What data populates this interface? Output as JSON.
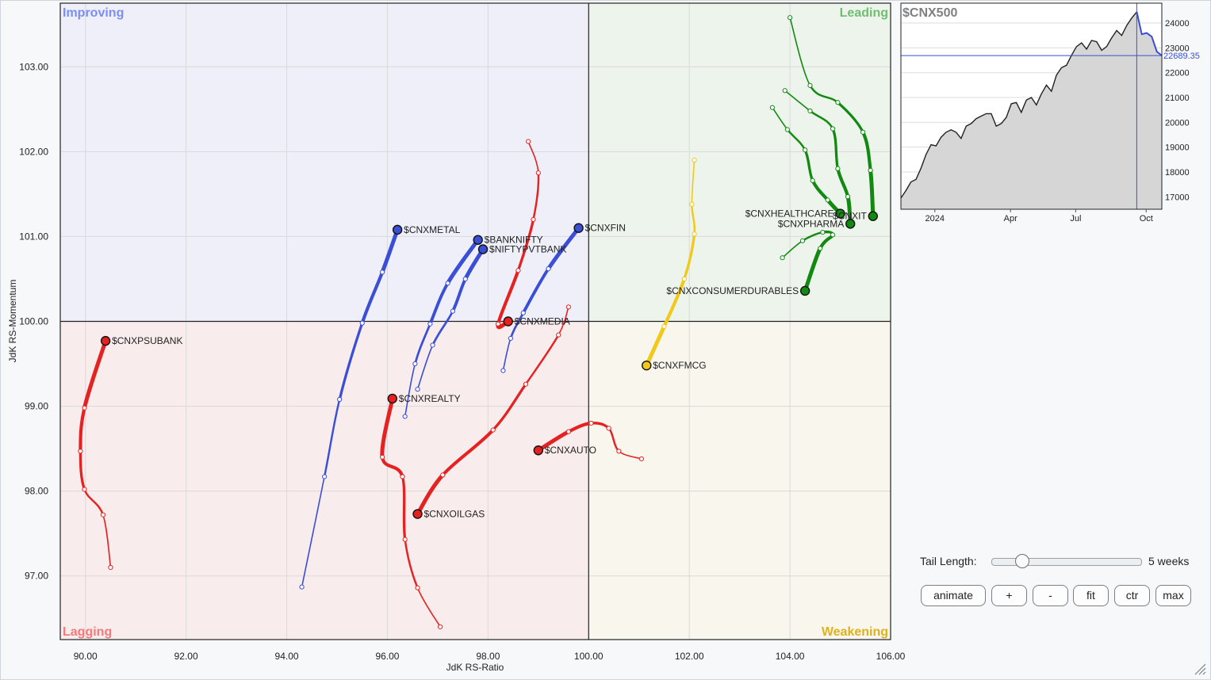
{
  "chart_data": {
    "type": "scatter",
    "xlabel": "JdK RS-Ratio",
    "ylabel": "JdK RS-Momentum",
    "xlim": [
      89.5,
      106.0
    ],
    "ylim": [
      96.25,
      103.75
    ],
    "xticks": [
      "90.00",
      "92.00",
      "94.00",
      "96.00",
      "98.00",
      "100.00",
      "102.00",
      "104.00",
      "106.00"
    ],
    "yticks": [
      "97.00",
      "98.00",
      "99.00",
      "100.00",
      "101.00",
      "102.00",
      "103.00"
    ],
    "grid": true,
    "quadrants": {
      "improving": "Improving",
      "leading": "Leading",
      "lagging": "Lagging",
      "weakening": "Weakening"
    },
    "series": [
      {
        "name": "$CNXMETAL",
        "color": "#3a4fd6",
        "points": [
          [
            94.3,
            96.87
          ],
          [
            94.75,
            98.17
          ],
          [
            95.05,
            99.08
          ],
          [
            95.5,
            99.98
          ],
          [
            95.9,
            100.58
          ],
          [
            96.2,
            101.08
          ]
        ]
      },
      {
        "name": "$BANKNIFTY",
        "color": "#3a4fd6",
        "points": [
          [
            96.35,
            98.88
          ],
          [
            96.55,
            99.5
          ],
          [
            96.85,
            99.97
          ],
          [
            97.2,
            100.45
          ],
          [
            97.8,
            100.96
          ]
        ]
      },
      {
        "name": "$NIFTYPVTBANK",
        "color": "#3a4fd6",
        "points": [
          [
            96.6,
            99.2
          ],
          [
            96.9,
            99.72
          ],
          [
            97.3,
            100.12
          ],
          [
            97.55,
            100.5
          ],
          [
            97.9,
            100.85
          ]
        ]
      },
      {
        "name": "$CNXFIN",
        "color": "#3a4fd6",
        "points": [
          [
            98.3,
            99.42
          ],
          [
            98.45,
            99.8
          ],
          [
            98.7,
            100.1
          ],
          [
            99.2,
            100.62
          ],
          [
            99.8,
            101.1
          ]
        ]
      },
      {
        "name": "$CNXMEDIA",
        "color": "#e52222",
        "points": [
          [
            98.8,
            102.12
          ],
          [
            99.0,
            101.75
          ],
          [
            98.9,
            101.2
          ],
          [
            98.6,
            100.6
          ],
          [
            98.2,
            99.97
          ],
          [
            98.4,
            100.0
          ]
        ]
      },
      {
        "name": "$CNXPSUBANK",
        "color": "#e52222",
        "points": [
          [
            90.5,
            97.1
          ],
          [
            90.35,
            97.72
          ],
          [
            89.98,
            98.02
          ],
          [
            89.9,
            98.47
          ],
          [
            89.98,
            98.98
          ],
          [
            90.4,
            99.77
          ]
        ]
      },
      {
        "name": "$CNXREALTY",
        "color": "#e52222",
        "points": [
          [
            97.05,
            96.4
          ],
          [
            96.6,
            96.86
          ],
          [
            96.35,
            97.43
          ],
          [
            96.3,
            98.17
          ],
          [
            95.9,
            98.4
          ],
          [
            96.1,
            99.09
          ]
        ]
      },
      {
        "name": "$CNXOILGAS",
        "color": "#e52222",
        "points": [
          [
            99.6,
            100.17
          ],
          [
            99.4,
            99.84
          ],
          [
            98.75,
            99.26
          ],
          [
            98.1,
            98.72
          ],
          [
            97.1,
            98.19
          ],
          [
            96.6,
            97.73
          ]
        ]
      },
      {
        "name": "$CNXAUTO",
        "color": "#e52222",
        "points": [
          [
            101.05,
            98.38
          ],
          [
            100.6,
            98.47
          ],
          [
            100.4,
            98.74
          ],
          [
            100.05,
            98.8
          ],
          [
            99.6,
            98.7
          ],
          [
            99.0,
            98.48
          ]
        ]
      },
      {
        "name": "$CNXFMCG",
        "color": "#f2c81a",
        "points": [
          [
            102.1,
            101.9
          ],
          [
            102.05,
            101.38
          ],
          [
            102.1,
            101.03
          ],
          [
            101.9,
            100.5
          ],
          [
            101.5,
            99.94
          ],
          [
            101.15,
            99.48
          ]
        ]
      },
      {
        "name": "$CNXHEALTHCARE",
        "color": "#128a12",
        "points": [
          [
            103.65,
            102.52
          ],
          [
            103.95,
            102.26
          ],
          [
            104.3,
            102.02
          ],
          [
            104.45,
            101.66
          ],
          [
            104.75,
            101.43
          ],
          [
            105.0,
            101.27
          ]
        ]
      },
      {
        "name": "$CNXIT",
        "color": "#128a12",
        "points": [
          [
            104.0,
            103.58
          ],
          [
            104.4,
            102.78
          ],
          [
            104.95,
            102.58
          ],
          [
            105.45,
            102.23
          ],
          [
            105.6,
            101.78
          ],
          [
            105.65,
            101.24
          ]
        ]
      },
      {
        "name": "$CNXPHARMA",
        "color": "#128a12",
        "points": [
          [
            103.9,
            102.72
          ],
          [
            104.4,
            102.48
          ],
          [
            104.85,
            102.27
          ],
          [
            104.95,
            101.8
          ],
          [
            105.15,
            101.47
          ],
          [
            105.2,
            101.15
          ]
        ]
      },
      {
        "name": "$CNXCONSUMERDURABLES",
        "color": "#128a12",
        "points": [
          [
            103.85,
            100.75
          ],
          [
            104.25,
            100.95
          ],
          [
            104.65,
            101.05
          ],
          [
            104.85,
            101.02
          ],
          [
            104.6,
            100.86
          ],
          [
            104.3,
            100.36
          ]
        ]
      }
    ],
    "benchmark": {
      "title": "$CNX500",
      "last_value": "22689.35",
      "yticks": [
        "24000",
        "23000",
        "22000",
        "21000",
        "20000",
        "19000",
        "18000",
        "17000"
      ],
      "ylim": [
        16500,
        24800
      ],
      "xticks": [
        "2024",
        "Apr",
        "Jul",
        "Oct"
      ],
      "values": [
        16950,
        17250,
        17600,
        17700,
        18150,
        18700,
        19100,
        19050,
        19400,
        19600,
        19700,
        19600,
        19350,
        19850,
        19950,
        20150,
        20250,
        20350,
        20350,
        19850,
        19950,
        20200,
        20750,
        20800,
        20400,
        20900,
        21000,
        20700,
        21150,
        21500,
        21250,
        21900,
        22200,
        22300,
        22700,
        23050,
        23200,
        22950,
        23300,
        23250,
        22900,
        23050,
        23400,
        23700,
        23500,
        23900,
        24200,
        24450,
        23550,
        23600,
        23450,
        22850,
        22689.35
      ]
    }
  },
  "controls": {
    "tail_label": "Tail Length:",
    "tail_value": "5 weeks",
    "tail_fraction": 0.17,
    "buttons": [
      "animate",
      "+",
      "-",
      "fit",
      "ctr",
      "max"
    ]
  }
}
